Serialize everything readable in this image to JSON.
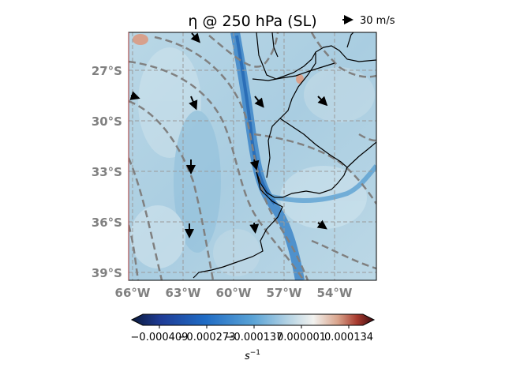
{
  "title": "η @ 250 hPa (SL)",
  "quiver_key": {
    "label": "30 m/s",
    "icon": "arrow-right-icon"
  },
  "lat_labels": [
    "27°S",
    "30°S",
    "33°S",
    "36°S",
    "39°S"
  ],
  "lon_labels": [
    "66°W",
    "63°W",
    "60°W",
    "57°W",
    "54°W"
  ],
  "colorbar": {
    "ticks": [
      "−0.000409",
      "−0.000273",
      "−0.000137",
      "0.000001",
      "0.000134"
    ],
    "label_text": "s",
    "label_sup": "−1",
    "colormap": "diverging-blue-white-red",
    "colors": [
      "#0b1a3d",
      "#1f3c96",
      "#1f6bc4",
      "#5aa3d6",
      "#b7d4e4",
      "#f2f2ef",
      "#d9a48c",
      "#a83a2e",
      "#3b0a10"
    ]
  },
  "chart_data": {
    "type": "heatmap",
    "field": "absolute vorticity η at 250 hPa",
    "units": "s^-1",
    "region": {
      "lon": [
        -66,
        -51.5
      ],
      "lat": [
        -39.5,
        -25
      ]
    },
    "color_range": [
      -0.000409,
      0.000134
    ],
    "grid": true,
    "overlays": [
      "coastlines and country borders",
      "dashed gray contours",
      "wind vectors"
    ],
    "wind_vectors": [
      {
        "lon": -62.3,
        "lat": -28.8,
        "direction": "south"
      },
      {
        "lon": -58.7,
        "lat": -28.8,
        "direction": "southeast"
      },
      {
        "lon": -54.6,
        "lat": -28.7,
        "direction": "southeast"
      },
      {
        "lon": -62.5,
        "lat": -32.5,
        "direction": "south"
      },
      {
        "lon": -58.6,
        "lat": -32.7,
        "direction": "south"
      },
      {
        "lon": -54.6,
        "lat": -33.5,
        "direction": "south"
      },
      {
        "lon": -62.6,
        "lat": -36.3,
        "direction": "south"
      },
      {
        "lon": -58.8,
        "lat": -36.3,
        "direction": "south"
      },
      {
        "lon": -54.7,
        "lat": -36.3,
        "direction": "southeast"
      },
      {
        "lon": -62.5,
        "lat": -25.2,
        "direction": "southeast"
      }
    ]
  }
}
